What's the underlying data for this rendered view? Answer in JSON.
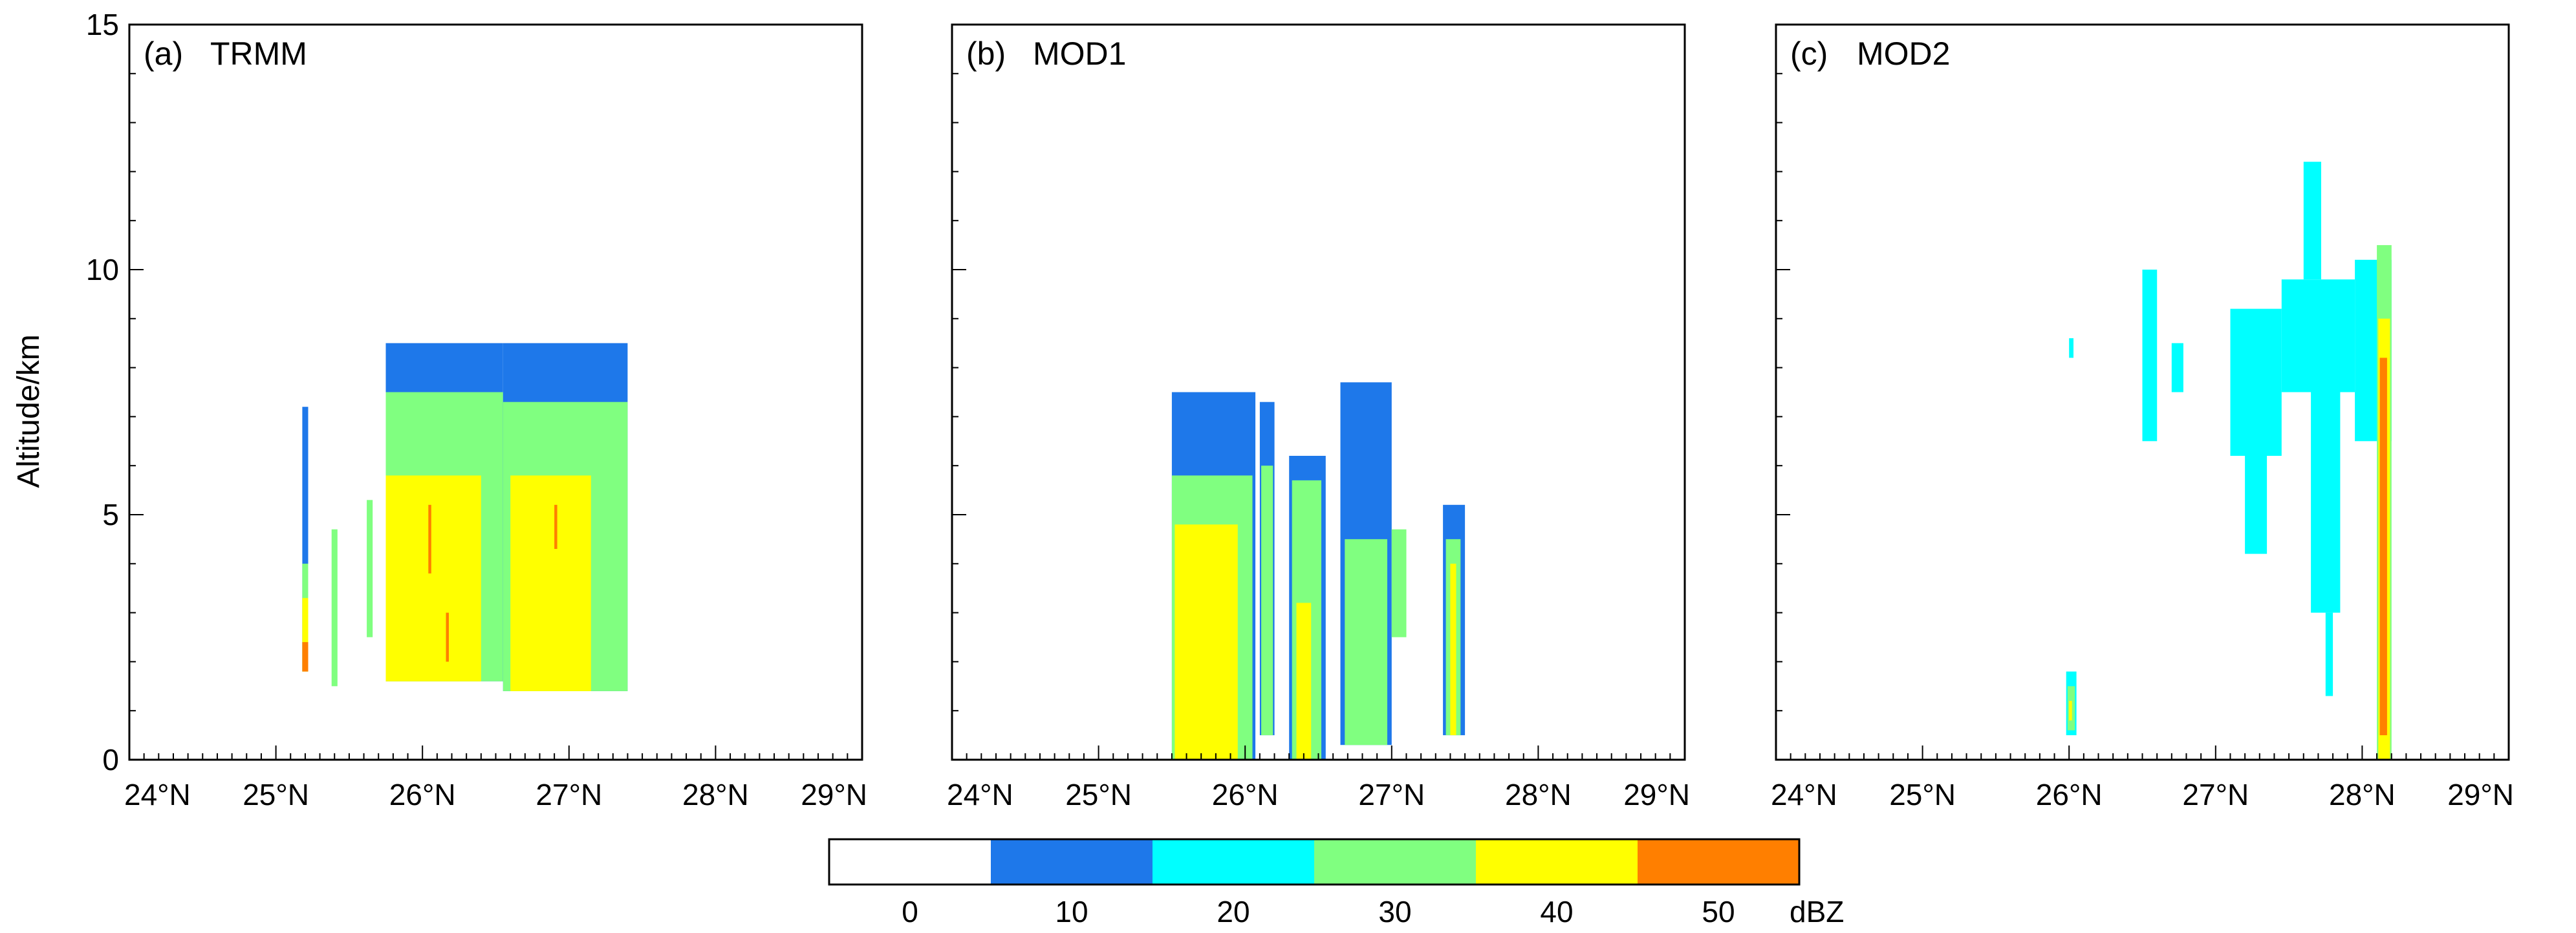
{
  "chart_data": [
    {
      "type": "heatmap",
      "panel_label": "(a)",
      "title": "TRMM",
      "ylabel": "Altitude/km",
      "xlim": [
        24,
        29
      ],
      "ylim": [
        0,
        15
      ],
      "x_ticks": [
        "24°N",
        "25°N",
        "26°N",
        "27°N",
        "28°N",
        "29°N"
      ],
      "y_ticks": [
        "0",
        "5",
        "10",
        "15"
      ],
      "cells": [
        {
          "x0": 25.18,
          "x1": 25.22,
          "y0": 1.8,
          "y1": 7.2,
          "dbz": 10
        },
        {
          "x0": 25.18,
          "x1": 25.22,
          "y0": 1.8,
          "y1": 4.0,
          "dbz": 30
        },
        {
          "x0": 25.18,
          "x1": 25.22,
          "y0": 1.8,
          "y1": 3.3,
          "dbz": 40
        },
        {
          "x0": 25.18,
          "x1": 25.22,
          "y0": 1.8,
          "y1": 2.4,
          "dbz": 50
        },
        {
          "x0": 25.38,
          "x1": 25.42,
          "y0": 1.5,
          "y1": 4.7,
          "dbz": 30
        },
        {
          "x0": 25.62,
          "x1": 25.66,
          "y0": 2.5,
          "y1": 5.3,
          "dbz": 30
        },
        {
          "x0": 25.75,
          "x1": 26.55,
          "y0": 1.6,
          "y1": 8.5,
          "dbz": 10
        },
        {
          "x0": 25.75,
          "x1": 26.55,
          "y0": 1.6,
          "y1": 7.5,
          "dbz": 30
        },
        {
          "x0": 25.75,
          "x1": 26.4,
          "y0": 1.6,
          "y1": 5.8,
          "dbz": 40
        },
        {
          "x0": 26.04,
          "x1": 26.06,
          "y0": 3.8,
          "y1": 5.2,
          "dbz": 50
        },
        {
          "x0": 26.16,
          "x1": 26.18,
          "y0": 2.0,
          "y1": 3.0,
          "dbz": 50
        },
        {
          "x0": 26.55,
          "x1": 27.4,
          "y0": 1.4,
          "y1": 8.5,
          "dbz": 10
        },
        {
          "x0": 26.55,
          "x1": 27.4,
          "y0": 1.4,
          "y1": 7.3,
          "dbz": 30
        },
        {
          "x0": 26.6,
          "x1": 27.15,
          "y0": 1.4,
          "y1": 5.8,
          "dbz": 40
        },
        {
          "x0": 26.9,
          "x1": 26.92,
          "y0": 4.3,
          "y1": 5.2,
          "dbz": 50
        }
      ]
    },
    {
      "type": "heatmap",
      "panel_label": "(b)",
      "title": "MOD1",
      "xlim": [
        24,
        29
      ],
      "ylim": [
        0,
        15
      ],
      "x_ticks": [
        "24°N",
        "25°N",
        "26°N",
        "27°N",
        "28°N",
        "29°N"
      ],
      "y_ticks": [
        "0",
        "5",
        "10",
        "15"
      ],
      "cells": [
        {
          "x0": 25.5,
          "x1": 26.07,
          "y0": 0.0,
          "y1": 7.5,
          "dbz": 10
        },
        {
          "x0": 25.5,
          "x1": 26.05,
          "y0": 0.0,
          "y1": 5.8,
          "dbz": 30
        },
        {
          "x0": 25.52,
          "x1": 25.95,
          "y0": 0.0,
          "y1": 4.8,
          "dbz": 40
        },
        {
          "x0": 26.1,
          "x1": 26.2,
          "y0": 0.5,
          "y1": 7.3,
          "dbz": 10
        },
        {
          "x0": 26.11,
          "x1": 26.19,
          "y0": 0.5,
          "y1": 6.0,
          "dbz": 30
        },
        {
          "x0": 26.3,
          "x1": 26.55,
          "y0": 0.0,
          "y1": 6.2,
          "dbz": 10
        },
        {
          "x0": 26.32,
          "x1": 26.52,
          "y0": 0.0,
          "y1": 5.7,
          "dbz": 30
        },
        {
          "x0": 26.35,
          "x1": 26.45,
          "y0": 0.0,
          "y1": 3.2,
          "dbz": 40
        },
        {
          "x0": 26.65,
          "x1": 27.0,
          "y0": 0.3,
          "y1": 7.7,
          "dbz": 10
        },
        {
          "x0": 26.68,
          "x1": 26.97,
          "y0": 0.3,
          "y1": 4.5,
          "dbz": 30
        },
        {
          "x0": 27.0,
          "x1": 27.1,
          "y0": 2.5,
          "y1": 4.7,
          "dbz": 30
        },
        {
          "x0": 27.35,
          "x1": 27.5,
          "y0": 0.5,
          "y1": 5.2,
          "dbz": 10
        },
        {
          "x0": 27.37,
          "x1": 27.47,
          "y0": 0.5,
          "y1": 4.5,
          "dbz": 30
        },
        {
          "x0": 27.4,
          "x1": 27.44,
          "y0": 0.5,
          "y1": 4.0,
          "dbz": 40
        }
      ]
    },
    {
      "type": "heatmap",
      "panel_label": "(c)",
      "title": "MOD2",
      "xlim": [
        24,
        29
      ],
      "ylim": [
        0,
        15
      ],
      "x_ticks": [
        "24°N",
        "25°N",
        "26°N",
        "27°N",
        "28°N",
        "29°N"
      ],
      "y_ticks": [
        "0",
        "5",
        "10",
        "15"
      ],
      "cells": [
        {
          "x0": 25.98,
          "x1": 26.05,
          "y0": 0.5,
          "y1": 1.8,
          "dbz": 20
        },
        {
          "x0": 25.99,
          "x1": 26.04,
          "y0": 0.6,
          "y1": 1.5,
          "dbz": 30
        },
        {
          "x0": 26.0,
          "x1": 26.02,
          "y0": 0.8,
          "y1": 1.2,
          "dbz": 40
        },
        {
          "x0": 26.0,
          "x1": 26.03,
          "y0": 8.2,
          "y1": 8.6,
          "dbz": 20
        },
        {
          "x0": 26.5,
          "x1": 26.6,
          "y0": 6.5,
          "y1": 10.0,
          "dbz": 20
        },
        {
          "x0": 26.7,
          "x1": 26.78,
          "y0": 7.5,
          "y1": 8.5,
          "dbz": 20
        },
        {
          "x0": 27.1,
          "x1": 27.45,
          "y0": 6.2,
          "y1": 9.2,
          "dbz": 20
        },
        {
          "x0": 27.2,
          "x1": 27.35,
          "y0": 4.2,
          "y1": 6.2,
          "dbz": 20
        },
        {
          "x0": 27.45,
          "x1": 27.95,
          "y0": 7.5,
          "y1": 9.8,
          "dbz": 20
        },
        {
          "x0": 27.6,
          "x1": 27.72,
          "y0": 9.8,
          "y1": 12.2,
          "dbz": 20
        },
        {
          "x0": 27.65,
          "x1": 27.85,
          "y0": 3.0,
          "y1": 7.5,
          "dbz": 20
        },
        {
          "x0": 27.75,
          "x1": 27.8,
          "y0": 1.3,
          "y1": 3.0,
          "dbz": 20
        },
        {
          "x0": 27.95,
          "x1": 28.2,
          "y0": 6.5,
          "y1": 10.2,
          "dbz": 20
        },
        {
          "x0": 28.1,
          "x1": 28.2,
          "y0": 0.0,
          "y1": 10.5,
          "dbz": 30
        },
        {
          "x0": 28.11,
          "x1": 28.19,
          "y0": 0.0,
          "y1": 9.0,
          "dbz": 40
        },
        {
          "x0": 28.12,
          "x1": 28.17,
          "y0": 0.5,
          "y1": 8.2,
          "dbz": 50
        }
      ]
    }
  ],
  "colorbar": {
    "unit": "dBZ",
    "tick_labels": [
      "0",
      "10",
      "20",
      "30",
      "40",
      "50"
    ],
    "bins": [
      {
        "value": 0,
        "color": "#ffffff"
      },
      {
        "value": 10,
        "color": "#1e78ea"
      },
      {
        "value": 20,
        "color": "#00ffff"
      },
      {
        "value": 30,
        "color": "#80ff80"
      },
      {
        "value": 40,
        "color": "#ffff00"
      },
      {
        "value": 50,
        "color": "#ff7f00"
      }
    ]
  }
}
